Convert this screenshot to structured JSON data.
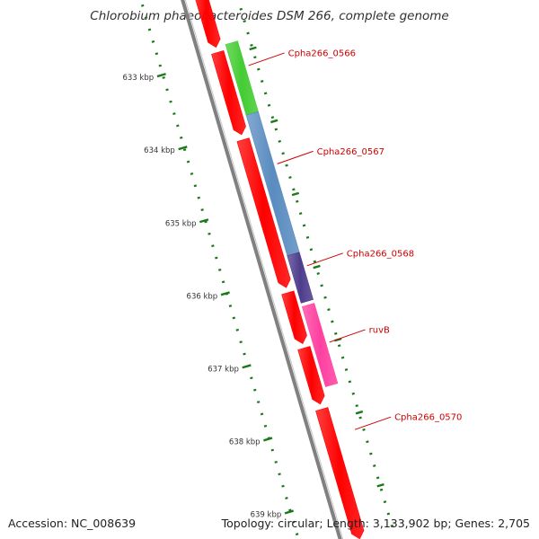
{
  "title": "Chlorobium phaeobacteroides DSM 266, complete genome",
  "footer": {
    "accession": "Accession: NC_008639",
    "summary": "Topology: circular; Length: 3,133,902 bp; Genes: 2,705"
  },
  "colors": {
    "forward_cds": "#ff0000",
    "pink_gene": "#ff40a0",
    "green_gene": "#44cc33",
    "blue_gene": "#5a8cc0",
    "purple_gene": "#4e3c8c",
    "backbone": "#808080",
    "gc_ticks": "#1a7a1a",
    "label_color": "#cc0000"
  },
  "scale": {
    "unit": "kbp",
    "ticks": [
      {
        "label": "633 kbp",
        "kbp": 633
      },
      {
        "label": "634 kbp",
        "kbp": 634
      },
      {
        "label": "635 kbp",
        "kbp": 635
      },
      {
        "label": "636 kbp",
        "kbp": 636
      },
      {
        "label": "637 kbp",
        "kbp": 637
      },
      {
        "label": "638 kbp",
        "kbp": 638
      },
      {
        "label": "639 kbp",
        "kbp": 639
      }
    ]
  },
  "features": {
    "forward_track": [
      {
        "start": 632.05,
        "end": 632.85,
        "color": "forward_cds"
      },
      {
        "start": 632.92,
        "end": 634.05,
        "color": "forward_cds"
      },
      {
        "start": 634.12,
        "end": 636.15,
        "color": "forward_cds"
      },
      {
        "start": 636.22,
        "end": 636.92,
        "color": "forward_cds"
      },
      {
        "start": 636.98,
        "end": 637.75,
        "color": "forward_cds"
      },
      {
        "start": 637.82,
        "end": 639.6,
        "color": "forward_cds"
      }
    ],
    "second_track": [
      {
        "start": 632.0,
        "end": 632.2,
        "color": "pink_gene"
      },
      {
        "start": 632.85,
        "end": 633.82,
        "color": "green_gene"
      },
      {
        "start": 633.82,
        "end": 635.75,
        "color": "blue_gene"
      },
      {
        "start": 635.75,
        "end": 636.4,
        "color": "purple_gene"
      },
      {
        "start": 636.45,
        "end": 637.55,
        "color": "pink_gene"
      }
    ]
  },
  "gene_labels": [
    {
      "text": "Cpha266_0566",
      "kbp": 633.2
    },
    {
      "text": "Cpha266_0567",
      "kbp": 634.55
    },
    {
      "text": "Cpha266_0568",
      "kbp": 635.95
    },
    {
      "text": "ruvB",
      "kbp": 637.0
    },
    {
      "text": "Cpha266_0570",
      "kbp": 638.2
    }
  ]
}
